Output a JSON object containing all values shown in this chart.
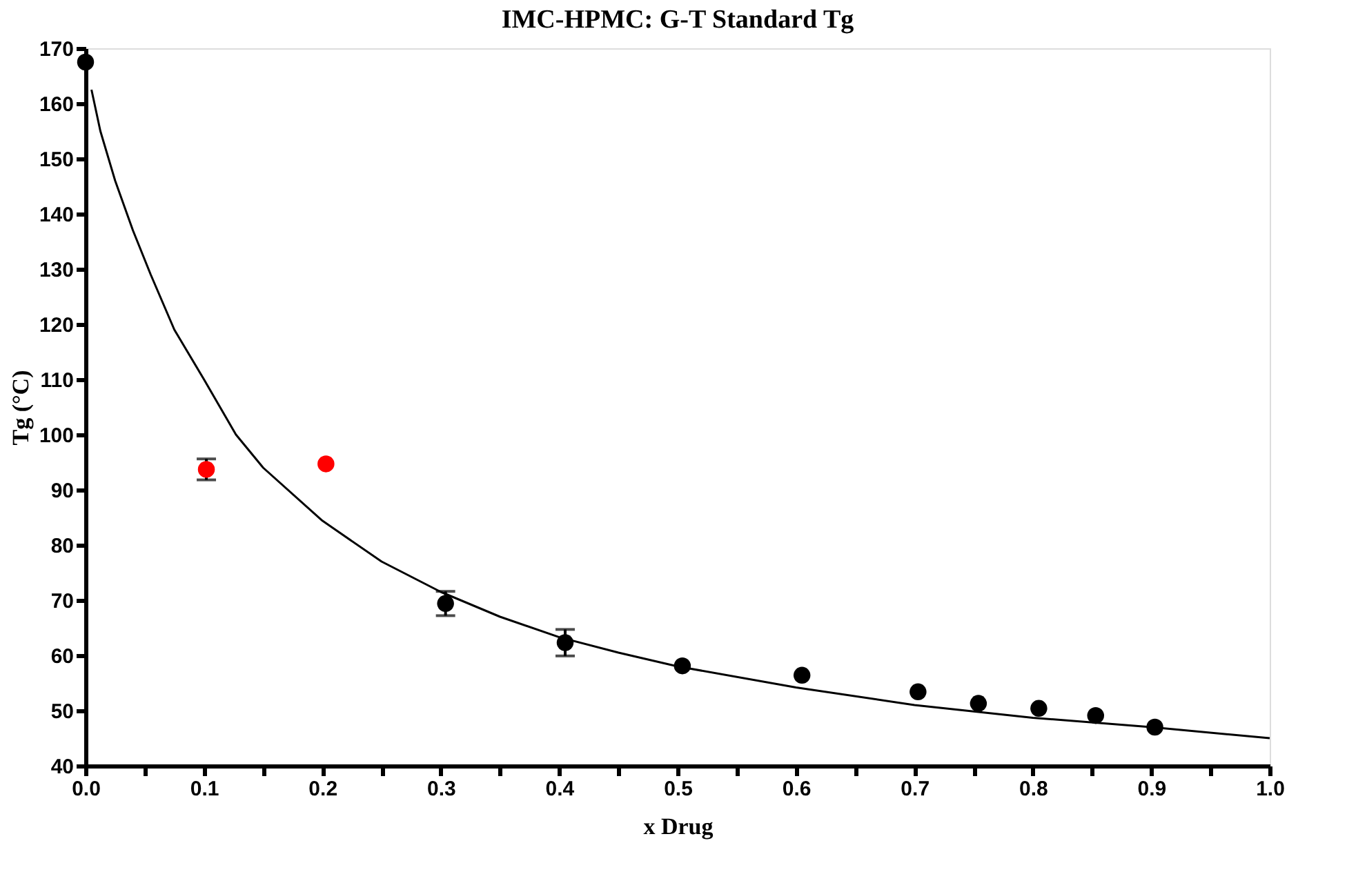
{
  "chart_data": {
    "type": "scatter",
    "title": "IMC-HPMC: G-T Standard Tg",
    "xlabel": "x Drug",
    "ylabel": "Tg (°C)",
    "xlim": [
      0,
      1.0
    ],
    "ylim": [
      40,
      170
    ],
    "xticks": [
      {
        "value": 0,
        "label": "0.0"
      },
      {
        "value": 0.05,
        "label": null
      },
      0.1,
      {
        "value": 0.15,
        "label": null
      },
      0.2,
      {
        "value": 0.25,
        "label": null
      },
      0.3,
      {
        "value": 0.35,
        "label": null
      },
      0.4,
      {
        "value": 0.45,
        "label": null
      },
      0.5,
      {
        "value": 0.55,
        "label": null
      },
      0.6,
      {
        "value": 0.65,
        "label": null
      },
      0.7,
      {
        "value": 0.75,
        "label": null
      },
      0.8,
      {
        "value": 0.85,
        "label": null
      },
      0.9,
      {
        "value": 0.95,
        "label": null
      },
      {
        "value": 1.0,
        "label": "1.0"
      }
    ],
    "yticks": [
      40,
      50,
      60,
      70,
      80,
      90,
      100,
      110,
      120,
      130,
      140,
      150,
      160,
      170
    ],
    "grid": false,
    "marker": "circle",
    "series": [
      {
        "color": "#000000",
        "x": [
          0,
          0.304,
          0.405,
          0.504,
          0.605,
          0.703,
          0.754,
          0.805,
          0.853,
          0.903
        ],
        "values": [
          167.5,
          69.4,
          62.3,
          58.1,
          56.4,
          53.4,
          51.3,
          50.4,
          49.1,
          47.0
        ],
        "errors": [
          null,
          2.2,
          2.4,
          null,
          null,
          null,
          null,
          null,
          null,
          null
        ]
      },
      {
        "color": "#ff0000",
        "x": [
          0.102,
          0.203
        ],
        "values": [
          93.7,
          94.7
        ],
        "errors": [
          1.9,
          null
        ]
      },
      {
        "type": "line",
        "color": "#000000",
        "marker": "none",
        "line_style": "solid",
        "x": [
          0.005,
          0.0125,
          0.025,
          0.04,
          0.055,
          0.075,
          0.1,
          0.127,
          0.15,
          0.2,
          0.25,
          0.3,
          0.35,
          0.4,
          0.45,
          0.5,
          0.6,
          0.7,
          0.8,
          0.9,
          1.0
        ],
        "values": [
          162.5,
          155,
          146,
          137,
          129,
          119,
          110,
          100,
          94,
          84.4,
          77,
          71.5,
          67,
          63.3,
          60.5,
          58,
          54.2,
          51,
          48.7,
          47,
          45
        ]
      }
    ]
  }
}
